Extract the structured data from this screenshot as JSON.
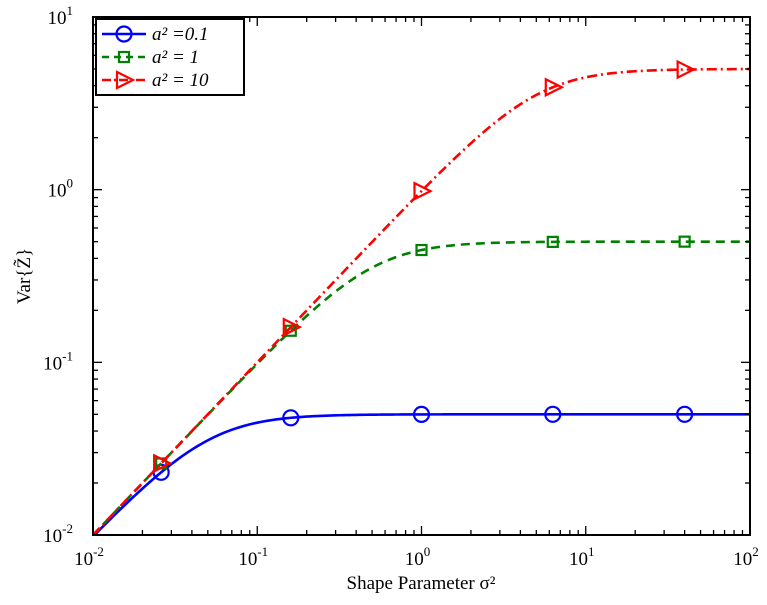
{
  "chart_data": {
    "type": "line",
    "title": "",
    "xlabel": "Shape Parameter σ²",
    "ylabel": "Var{Z̃}",
    "xscale": "log",
    "yscale": "log",
    "xlim": [
      0.01,
      100
    ],
    "ylim": [
      0.01,
      10
    ],
    "xticks": [
      {
        "base": "10",
        "exp": "-2"
      },
      {
        "base": "10",
        "exp": "-1"
      },
      {
        "base": "10",
        "exp": "0"
      },
      {
        "base": "10",
        "exp": "1"
      },
      {
        "base": "10",
        "exp": "2"
      }
    ],
    "yticks": [
      {
        "base": "10",
        "exp": "-2"
      },
      {
        "base": "10",
        "exp": "-1"
      },
      {
        "base": "10",
        "exp": "0"
      },
      {
        "base": "10",
        "exp": "1"
      }
    ],
    "grid": false,
    "legend_position": "top-left",
    "series": [
      {
        "name": "a² =0.1",
        "a2": 0.1,
        "color": "#0000ff",
        "dash": "solid",
        "marker": "circle",
        "markers_x": [
          0.026,
          0.16,
          1.0,
          6.3,
          40
        ]
      },
      {
        "name": "a² = 1",
        "a2": 1,
        "color": "#008000",
        "dash": "dashed",
        "marker": "square",
        "markers_x": [
          0.026,
          0.16,
          1.0,
          6.3,
          40
        ]
      },
      {
        "name": "a² = 10",
        "a2": 10,
        "color": "#ff0000",
        "dash": "dashdot",
        "marker": "triangle-right",
        "markers_x": [
          0.026,
          0.16,
          1.0,
          6.3,
          40
        ]
      }
    ]
  }
}
